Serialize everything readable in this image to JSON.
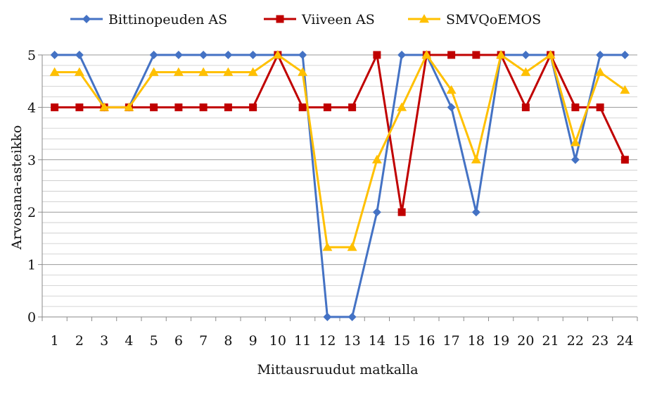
{
  "chart_data": {
    "type": "line",
    "title": "",
    "xlabel": "Mittausruudut matkalla",
    "ylabel": "Arvosana-asteikko",
    "categories": [
      "1",
      "2",
      "3",
      "4",
      "5",
      "6",
      "7",
      "8",
      "9",
      "10",
      "11",
      "12",
      "13",
      "14",
      "15",
      "16",
      "17",
      "18",
      "19",
      "20",
      "21",
      "22",
      "23",
      "24"
    ],
    "ylim": [
      0,
      5
    ],
    "yticks": [
      0,
      1,
      2,
      3,
      4,
      5
    ],
    "grid": true,
    "legend_position": "top",
    "series": [
      {
        "name": "Bittinopeuden AS",
        "color": "#4472C4",
        "marker": "diamond",
        "values": [
          5,
          5,
          4,
          4,
          5,
          5,
          5,
          5,
          5,
          5,
          5,
          0,
          0,
          2,
          5,
          5,
          4,
          2,
          5,
          5,
          5,
          3,
          5,
          5
        ]
      },
      {
        "name": "Viiveen AS",
        "color": "#C00000",
        "marker": "square",
        "values": [
          4,
          4,
          4,
          4,
          4,
          4,
          4,
          4,
          4,
          5,
          4,
          4,
          4,
          5,
          2,
          5,
          5,
          5,
          5,
          4,
          5,
          4,
          4,
          3
        ]
      },
      {
        "name": "SMVQoEMOS",
        "color": "#FFC000",
        "marker": "triangle",
        "values": [
          4.67,
          4.67,
          4,
          4,
          4.67,
          4.67,
          4.67,
          4.67,
          4.67,
          5,
          4.67,
          1.33,
          1.33,
          3,
          4,
          5,
          4.33,
          3,
          5,
          4.67,
          5,
          3.33,
          4.67,
          4.33
        ]
      }
    ]
  }
}
